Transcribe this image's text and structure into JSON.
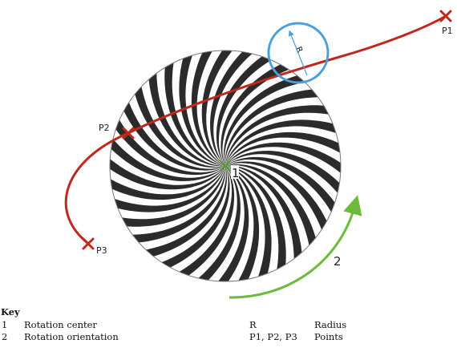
{
  "diagram": {
    "labels": {
      "p1": "P1",
      "p2": "P2",
      "p3": "P3",
      "radius": "R",
      "center": "1",
      "orientation": "2"
    },
    "colors": {
      "curve": "#c0281c",
      "marker": "#c0281c",
      "radius_circle": "#4a9fe0",
      "rotation_arrow": "#6cbb3c",
      "center_mark": "#4c9a2a",
      "stripe_dark": "#2b2b2b",
      "stripe_light": "#ffffff"
    }
  },
  "key": {
    "title": "Key",
    "rows": [
      {
        "num": "1",
        "text": "Rotation center",
        "sym": "R",
        "meaning": "Radius"
      },
      {
        "num": "2",
        "text": "Rotation orientation",
        "sym": "P1, P2, P3",
        "meaning": "Points"
      }
    ]
  }
}
